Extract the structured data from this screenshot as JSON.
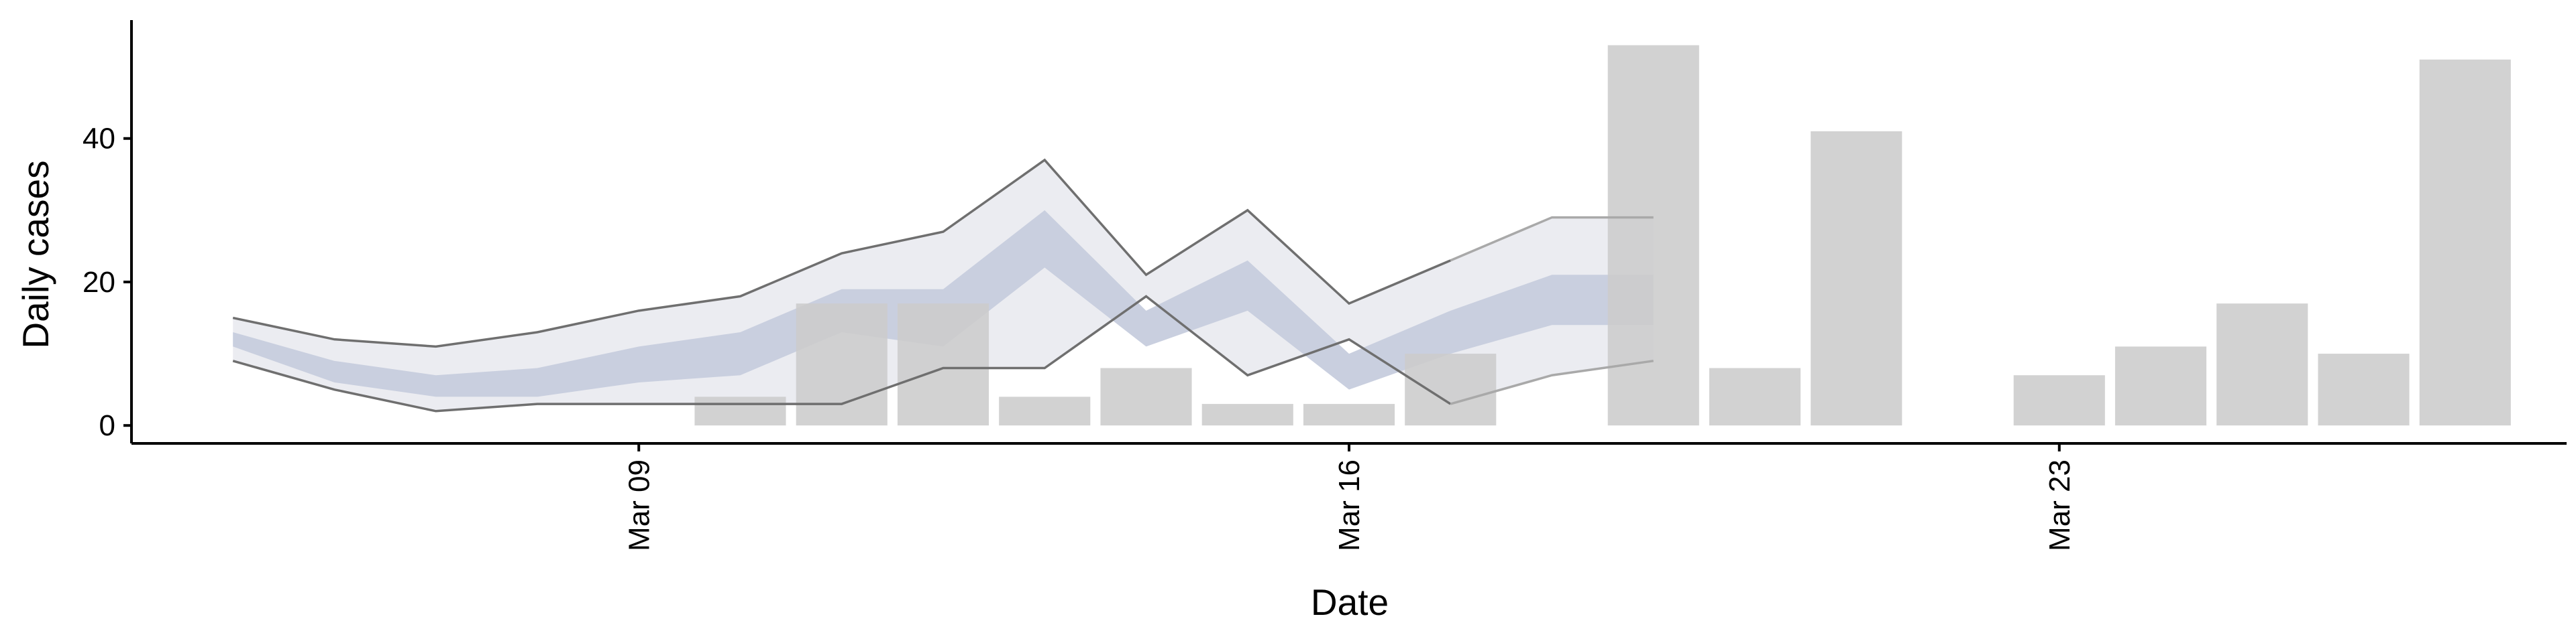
{
  "chart_data": {
    "type": "bar",
    "xlabel": "Date",
    "ylabel": "Daily cases",
    "ylim": [
      -2.5,
      56.5
    ],
    "xlim": [
      "2020-03-04",
      "2020-03-28"
    ],
    "x_ticks": [
      {
        "date": "2020-03-09",
        "label": "Mar 09"
      },
      {
        "date": "2020-03-16",
        "label": "Mar 16"
      },
      {
        "date": "2020-03-23",
        "label": "Mar 23"
      }
    ],
    "y_ticks": [
      0,
      20,
      40
    ],
    "grid": false,
    "legend": "none",
    "bars": {
      "name": "",
      "color": "#cccccc",
      "points": [
        {
          "x": "2020-03-10",
          "y": 4
        },
        {
          "x": "2020-03-11",
          "y": 17
        },
        {
          "x": "2020-03-12",
          "y": 17
        },
        {
          "x": "2020-03-13",
          "y": 4
        },
        {
          "x": "2020-03-14",
          "y": 8
        },
        {
          "x": "2020-03-15",
          "y": 3
        },
        {
          "x": "2020-03-16",
          "y": 3
        },
        {
          "x": "2020-03-17",
          "y": 10
        },
        {
          "x": "2020-03-19",
          "y": 53
        },
        {
          "x": "2020-03-20",
          "y": 8
        },
        {
          "x": "2020-03-21",
          "y": 41
        },
        {
          "x": "2020-03-23",
          "y": 7
        },
        {
          "x": "2020-03-24",
          "y": 11
        },
        {
          "x": "2020-03-25",
          "y": 17
        },
        {
          "x": "2020-03-26",
          "y": 10
        },
        {
          "x": "2020-03-27",
          "y": 51
        }
      ]
    },
    "bands": {
      "x": [
        "2020-03-05",
        "2020-03-06",
        "2020-03-07",
        "2020-03-08",
        "2020-03-09",
        "2020-03-10",
        "2020-03-11",
        "2020-03-12",
        "2020-03-13",
        "2020-03-14",
        "2020-03-15",
        "2020-03-16",
        "2020-03-17",
        "2020-03-18",
        "2020-03-19"
      ],
      "outer_lower": [
        9,
        5,
        2,
        3,
        3,
        3,
        3,
        8,
        8,
        18,
        7,
        12,
        3,
        7,
        9
      ],
      "outer_upper": [
        15,
        12,
        11,
        13,
        16,
        18,
        24,
        27,
        37,
        21,
        30,
        17,
        23,
        29,
        29
      ],
      "inner_lower": [
        11,
        6,
        4,
        4,
        6,
        7,
        13,
        11,
        22,
        11,
        16,
        5,
        10,
        14,
        14
      ],
      "inner_upper": [
        13,
        9,
        7,
        8,
        11,
        13,
        19,
        19,
        30,
        16,
        23,
        10,
        16,
        21,
        21
      ],
      "outer_color": "#ebecf1",
      "inner_color": "#c9cfdf",
      "line_color": "#6f6f6f",
      "forecast_line_color": "#a9a9a9"
    }
  }
}
